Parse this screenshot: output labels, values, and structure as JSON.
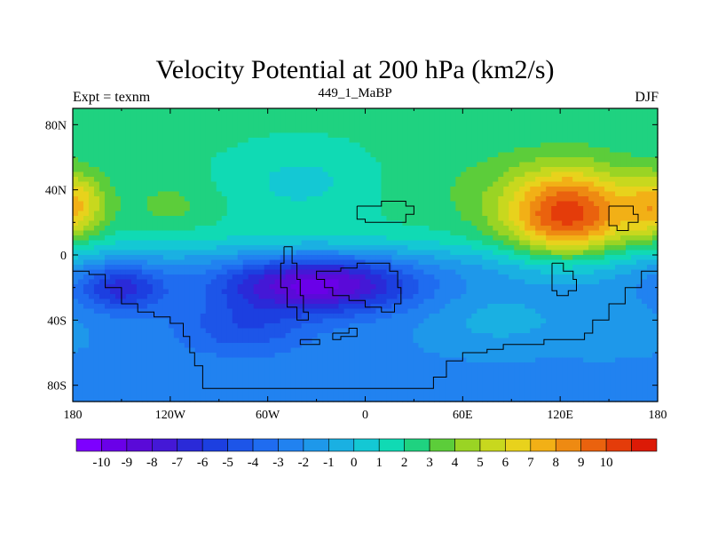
{
  "chart_data": {
    "type": "heatmap",
    "title": "Velocity Potential at 200 hPa (km2/s)",
    "subtitle_left": "Expt = texnm",
    "subtitle_center": "449_1_MaBP",
    "subtitle_right": "DJF",
    "x_range": [
      -180,
      180
    ],
    "y_range": [
      -90,
      90
    ],
    "x_ticks": [
      {
        "value": -180,
        "label": "180"
      },
      {
        "value": -120,
        "label": "120W"
      },
      {
        "value": -60,
        "label": "60W"
      },
      {
        "value": 0,
        "label": "0"
      },
      {
        "value": 60,
        "label": "60E"
      },
      {
        "value": 120,
        "label": "120E"
      },
      {
        "value": 180,
        "label": "180"
      }
    ],
    "y_ticks": [
      {
        "value": 80,
        "label": "80N"
      },
      {
        "value": 40,
        "label": "40N"
      },
      {
        "value": 0,
        "label": "0"
      },
      {
        "value": -40,
        "label": "40S"
      },
      {
        "value": -80,
        "label": "80S"
      }
    ],
    "color_levels": [
      -10,
      -9,
      -8,
      -7,
      -6,
      -5,
      -4,
      -3,
      -2,
      -1,
      0,
      1,
      2,
      3,
      4,
      5,
      6,
      7,
      8,
      9,
      10
    ],
    "colorbar_labels": [
      "-10",
      "-9",
      "-8",
      "-7",
      "-6",
      "-5",
      "-4",
      "-3",
      "-2",
      "-1",
      "0",
      "1",
      "2",
      "3",
      "4",
      "5",
      "6",
      "7",
      "8",
      "9",
      "10"
    ],
    "colors": [
      "#7d00ff",
      "#6a00e8",
      "#5a0ad8",
      "#4418d6",
      "#2a2ad8",
      "#1c3fe0",
      "#1d55e8",
      "#1f6cf0",
      "#2182f0",
      "#1e98ea",
      "#1ab0e2",
      "#14c8d4",
      "#10dab4",
      "#1fd280",
      "#5ccd3a",
      "#9ad424",
      "#c8d81e",
      "#e8d21c",
      "#f2b016",
      "#ee8a12",
      "#ea620e",
      "#e43c0a",
      "#dc1a06"
    ],
    "features": [
      {
        "name": "east-asia-maximum",
        "lon": 125,
        "lat": 25,
        "value": 10
      },
      {
        "name": "date-line-maximum",
        "lon": -180,
        "lat": 30,
        "value": 7
      },
      {
        "name": "south-atlantic-minimum",
        "lon": -30,
        "lat": -18,
        "value": -10
      },
      {
        "name": "south-pacific-minimum",
        "lon": -150,
        "lat": -20,
        "value": -7
      }
    ]
  }
}
